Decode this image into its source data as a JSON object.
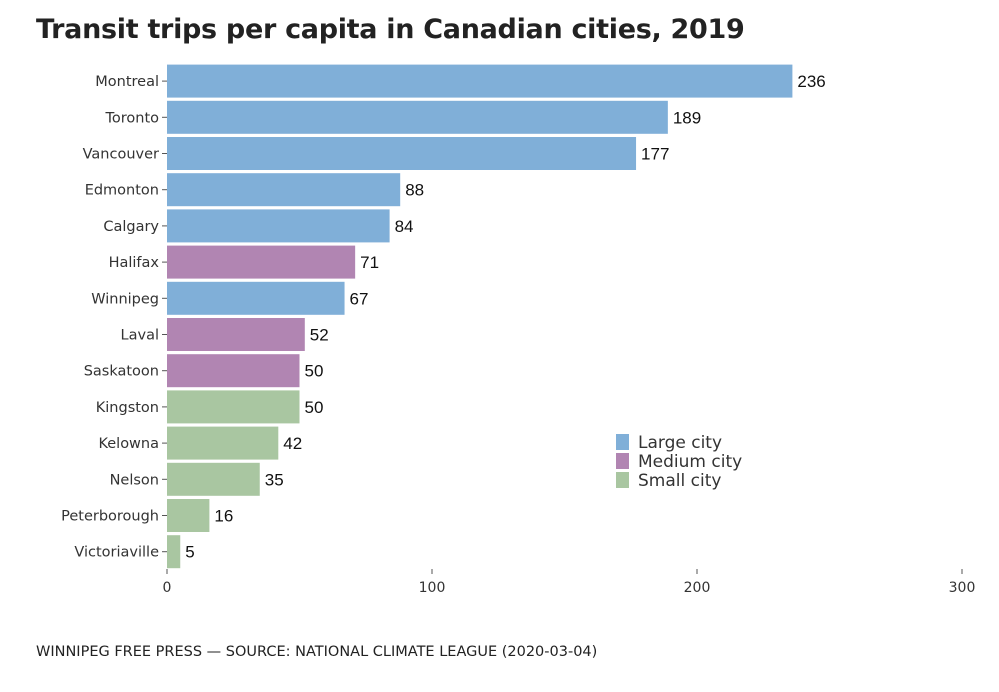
{
  "chart_data": {
    "type": "bar",
    "orientation": "horizontal",
    "title": "Transit trips per capita in Canadian cities, 2019",
    "categories": [
      "Montreal",
      "Toronto",
      "Vancouver",
      "Edmonton",
      "Calgary",
      "Halifax",
      "Winnipeg",
      "Laval",
      "Saskatoon",
      "Kingston",
      "Kelowna",
      "Nelson",
      "Peterborough",
      "Victoriaville"
    ],
    "values": [
      236,
      189,
      177,
      88,
      84,
      71,
      67,
      52,
      50,
      50,
      42,
      35,
      16,
      5
    ],
    "groups": [
      "Large city",
      "Large city",
      "Large city",
      "Large city",
      "Large city",
      "Medium city",
      "Large city",
      "Medium city",
      "Medium city",
      "Small city",
      "Small city",
      "Small city",
      "Small city",
      "Small city"
    ],
    "legend": [
      {
        "name": "Large city",
        "color": "#80afd8"
      },
      {
        "name": "Medium city",
        "color": "#b185b2"
      },
      {
        "name": "Small city",
        "color": "#a9c6a1"
      }
    ],
    "xlim": [
      0,
      300
    ],
    "xticks": [
      0,
      100,
      200,
      300
    ],
    "legend_position": "bottom-right",
    "grid": false
  },
  "footer": "WINNIPEG FREE PRESS — SOURCE: NATIONAL CLIMATE LEAGUE (2020-03-04)"
}
